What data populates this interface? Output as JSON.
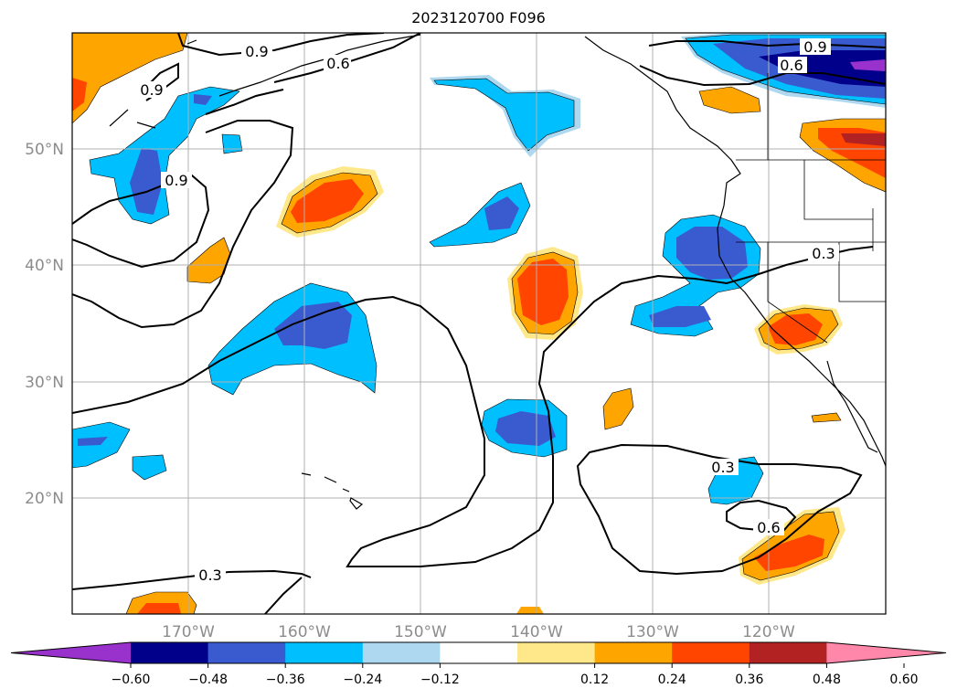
{
  "title": "2023120700 F096",
  "latitude_labels": [
    "50°N",
    "40°N",
    "30°N",
    "20°N"
  ],
  "longitude_labels": [
    "170°W",
    "160°W",
    "150°W",
    "140°W",
    "130°W",
    "120°W"
  ],
  "contour_labels": [
    "0.9",
    "0.6",
    "0.9",
    "0.6",
    "0.9",
    "0.3",
    "0.3",
    "0.6",
    "0.3"
  ],
  "colorbar": {
    "tick_labels": [
      "−0.60",
      "−0.48",
      "−0.36",
      "−0.24",
      "−0.12",
      "0.12",
      "0.24",
      "0.36",
      "0.48",
      "0.60"
    ],
    "colors": [
      "#9932cc",
      "#00008b",
      "#3a5bcf",
      "#00bfff",
      "#add8f0",
      "#ffffff",
      "#ffe88a",
      "#ffa500",
      "#ff4500",
      "#b22222",
      "#ff88aa"
    ]
  },
  "shading_colors": {
    "light_blue": "#add8f0",
    "blue": "#00bfff",
    "mid_blue": "#3a5bcf",
    "navy": "#00008b",
    "purple": "#9932cc",
    "light_yellow": "#ffe88a",
    "orange": "#ffa500",
    "red_orange": "#ff4500",
    "dark_red": "#b22222"
  }
}
